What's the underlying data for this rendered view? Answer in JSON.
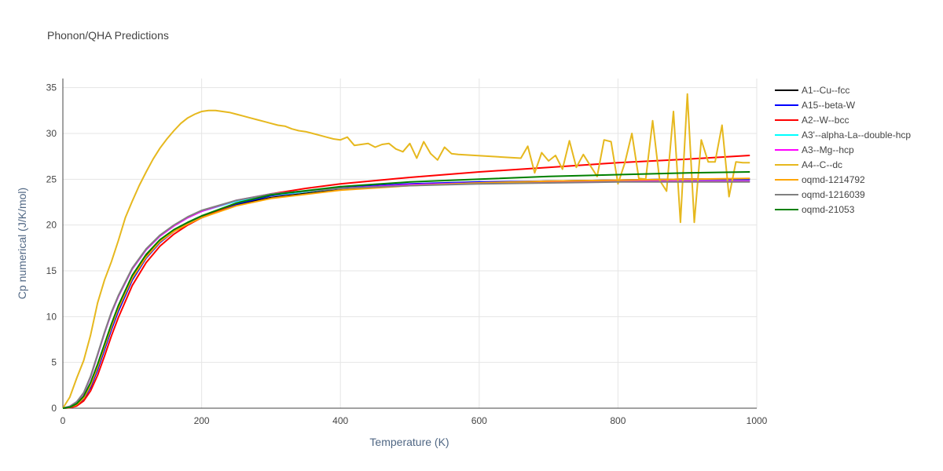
{
  "chart_data": {
    "type": "line",
    "title": "Phonon/QHA Predictions",
    "xlabel": "Temperature (K)",
    "ylabel": "Cp numerical (J/K/mol)",
    "xlim": [
      0,
      1000
    ],
    "ylim": [
      0,
      36
    ],
    "xticks": [
      0,
      200,
      400,
      600,
      800,
      1000
    ],
    "yticks": [
      0,
      5,
      10,
      15,
      20,
      25,
      30,
      35
    ],
    "grid": true,
    "legend_position": "right",
    "series": [
      {
        "name": "A1--Cu--fcc",
        "color": "#000000",
        "x": [
          0,
          10,
          20,
          30,
          40,
          50,
          60,
          70,
          80,
          100,
          120,
          140,
          160,
          180,
          200,
          250,
          300,
          400,
          500,
          600,
          700,
          800,
          900,
          990
        ],
        "y": [
          0,
          0.1,
          0.4,
          1.2,
          2.6,
          4.6,
          6.8,
          9.0,
          11.0,
          14.3,
          16.6,
          18.2,
          19.3,
          20.1,
          20.8,
          22.2,
          23.0,
          23.9,
          24.4,
          24.6,
          24.8,
          24.9,
          25.0,
          25.0
        ]
      },
      {
        "name": "A15--beta-W",
        "color": "#0000ff",
        "x": [
          0,
          10,
          20,
          30,
          40,
          50,
          60,
          70,
          80,
          100,
          120,
          140,
          160,
          180,
          200,
          250,
          300,
          400,
          500,
          600,
          700,
          800,
          900,
          990
        ],
        "y": [
          0,
          0.05,
          0.3,
          1.0,
          2.3,
          4.2,
          6.4,
          8.6,
          10.6,
          14.0,
          16.4,
          18.1,
          19.3,
          20.2,
          20.9,
          22.3,
          23.2,
          24.1,
          24.5,
          24.7,
          24.8,
          24.9,
          25.0,
          25.0
        ]
      },
      {
        "name": "A2--W--bcc",
        "color": "#ff0000",
        "x": [
          0,
          10,
          20,
          30,
          40,
          50,
          60,
          70,
          80,
          100,
          120,
          140,
          160,
          180,
          200,
          250,
          300,
          350,
          400,
          500,
          600,
          700,
          800,
          900,
          990
        ],
        "y": [
          0,
          0.05,
          0.25,
          0.8,
          1.9,
          3.6,
          5.7,
          7.9,
          9.9,
          13.4,
          15.9,
          17.7,
          19.0,
          20.0,
          20.8,
          22.4,
          23.4,
          24.0,
          24.5,
          25.2,
          25.8,
          26.3,
          26.8,
          27.2,
          27.6
        ]
      },
      {
        "name": "A3'--alpha-La--double-hcp",
        "color": "#00ffff",
        "x": [
          0,
          10,
          20,
          30,
          40,
          50,
          60,
          70,
          80,
          100,
          120,
          140,
          160,
          180,
          200,
          250,
          300,
          400,
          500,
          600,
          700,
          800,
          900,
          990
        ],
        "y": [
          0,
          0.2,
          0.7,
          1.6,
          3.4,
          5.8,
          8.2,
          10.4,
          12.2,
          15.2,
          17.3,
          18.8,
          19.9,
          20.8,
          21.5,
          22.6,
          23.3,
          24.0,
          24.4,
          24.6,
          24.7,
          24.8,
          24.8,
          24.8
        ]
      },
      {
        "name": "A3--Mg--hcp",
        "color": "#ff00ff",
        "x": [
          0,
          10,
          20,
          30,
          40,
          50,
          60,
          70,
          80,
          100,
          120,
          140,
          160,
          180,
          200,
          250,
          300,
          400,
          500,
          600,
          700,
          800,
          900,
          990
        ],
        "y": [
          0,
          0.2,
          0.7,
          1.6,
          3.4,
          5.8,
          8.2,
          10.4,
          12.2,
          15.2,
          17.3,
          18.8,
          19.9,
          20.8,
          21.5,
          22.7,
          23.4,
          24.0,
          24.4,
          24.6,
          24.7,
          24.8,
          24.8,
          24.8
        ]
      },
      {
        "name": "A4--C--dc",
        "color": "#e6b81e",
        "x": [
          0,
          10,
          20,
          30,
          40,
          50,
          60,
          70,
          80,
          90,
          100,
          110,
          120,
          130,
          140,
          150,
          160,
          170,
          180,
          190,
          200,
          210,
          220,
          230,
          240,
          250,
          260,
          270,
          280,
          290,
          300,
          310,
          320,
          330,
          340,
          350,
          360,
          370,
          380,
          390,
          400,
          410,
          420,
          430,
          440,
          450,
          460,
          470,
          480,
          490,
          500,
          510,
          520,
          530,
          540,
          550,
          560,
          570,
          660,
          670,
          680,
          690,
          700,
          710,
          720,
          730,
          740,
          750,
          760,
          770,
          780,
          790,
          800,
          810,
          820,
          830,
          840,
          850,
          860,
          870,
          880,
          890,
          900,
          910,
          920,
          930,
          940,
          950,
          960,
          970,
          980,
          990
        ],
        "y": [
          0,
          1.2,
          3.3,
          5.2,
          8.0,
          11.5,
          14.0,
          16.0,
          18.3,
          20.8,
          22.6,
          24.3,
          25.8,
          27.2,
          28.4,
          29.4,
          30.3,
          31.1,
          31.7,
          32.1,
          32.4,
          32.5,
          32.5,
          32.4,
          32.3,
          32.1,
          31.9,
          31.7,
          31.5,
          31.3,
          31.1,
          30.9,
          30.8,
          30.5,
          30.3,
          30.2,
          30.0,
          29.8,
          29.6,
          29.4,
          29.3,
          29.6,
          28.7,
          28.8,
          28.9,
          28.5,
          28.8,
          28.9,
          28.3,
          28.0,
          28.9,
          27.3,
          29.1,
          27.8,
          27.1,
          28.5,
          27.8,
          27.7,
          27.3,
          28.6,
          25.7,
          27.9,
          27.0,
          27.6,
          26.1,
          29.2,
          26.3,
          27.7,
          26.5,
          25.3,
          29.3,
          29.1,
          24.5,
          26.8,
          30.0,
          25.1,
          25.0,
          31.4,
          24.9,
          23.7,
          32.4,
          20.3,
          34.3,
          20.3,
          29.3,
          26.9,
          26.9,
          30.9,
          23.1,
          26.9,
          26.8,
          26.8
        ]
      },
      {
        "name": "oqmd-1214792",
        "color": "#ffa500",
        "x": [
          0,
          10,
          20,
          30,
          40,
          50,
          60,
          70,
          80,
          100,
          120,
          140,
          160,
          180,
          200,
          250,
          300,
          400,
          500,
          600,
          700,
          800,
          900,
          990
        ],
        "y": [
          0,
          0.1,
          0.4,
          1.1,
          2.5,
          4.5,
          6.7,
          8.9,
          10.9,
          14.2,
          16.5,
          18.2,
          19.3,
          20.1,
          20.8,
          22.1,
          22.9,
          23.8,
          24.3,
          24.6,
          24.8,
          24.9,
          25.0,
          25.1
        ]
      },
      {
        "name": "oqmd-1216039",
        "color": "#808080",
        "x": [
          0,
          10,
          20,
          30,
          40,
          50,
          60,
          70,
          80,
          100,
          120,
          140,
          160,
          180,
          200,
          250,
          300,
          400,
          500,
          600,
          700,
          800,
          900,
          990
        ],
        "y": [
          0,
          0.2,
          0.7,
          1.7,
          3.5,
          5.9,
          8.3,
          10.5,
          12.3,
          15.3,
          17.4,
          18.9,
          20.0,
          20.9,
          21.6,
          22.7,
          23.4,
          24.0,
          24.3,
          24.5,
          24.6,
          24.7,
          24.7,
          24.7
        ]
      },
      {
        "name": "oqmd-21053",
        "color": "#008000",
        "x": [
          0,
          10,
          20,
          30,
          40,
          50,
          60,
          70,
          80,
          100,
          120,
          140,
          160,
          180,
          200,
          250,
          300,
          400,
          500,
          600,
          700,
          800,
          900,
          990
        ],
        "y": [
          0,
          0.1,
          0.5,
          1.3,
          2.8,
          4.8,
          7.0,
          9.2,
          11.2,
          14.5,
          16.8,
          18.4,
          19.5,
          20.3,
          21.0,
          22.4,
          23.3,
          24.2,
          24.7,
          25.0,
          25.3,
          25.5,
          25.7,
          25.8
        ]
      }
    ]
  }
}
